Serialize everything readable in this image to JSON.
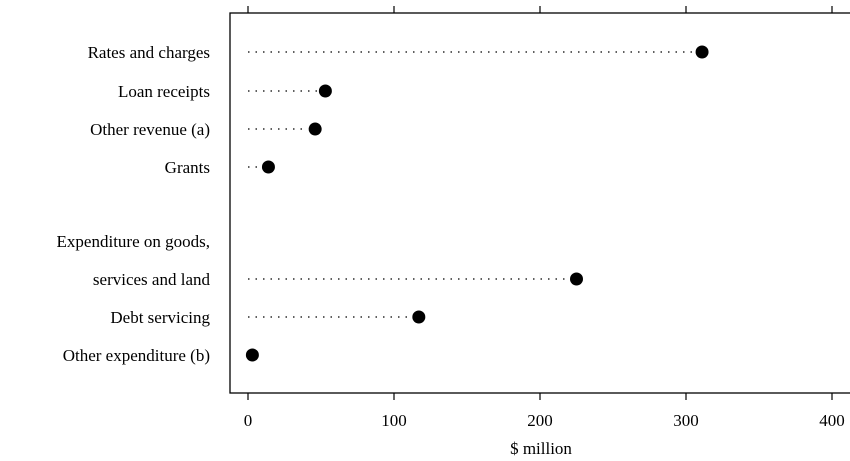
{
  "chart_data": {
    "type": "scatter",
    "style": "dot-plot",
    "categories": [
      "Rates and charges",
      "Loan receipts",
      "Other revenue (a)",
      "Grants",
      [
        "Expenditure on goods,",
        "services and land"
      ],
      "Debt servicing",
      "Other expenditure (b)"
    ],
    "values": [
      311,
      53,
      46,
      14,
      225,
      117,
      3
    ],
    "xlabel": "$ million",
    "xlim": [
      -12,
      412
    ],
    "xticks": [
      0,
      100,
      200,
      300,
      400
    ],
    "grid": false,
    "legend": "none",
    "colors": {
      "marker": "#000000",
      "frame": "#000000"
    }
  }
}
